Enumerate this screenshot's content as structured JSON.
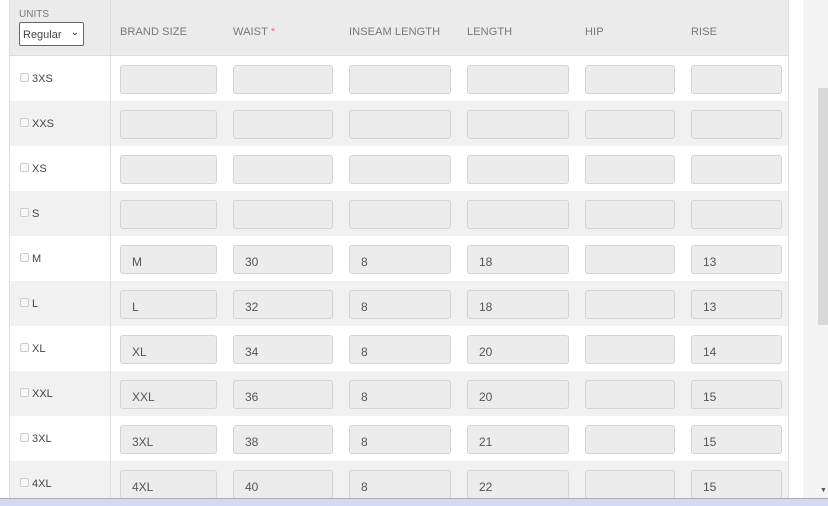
{
  "units": {
    "label": "UNITS",
    "selected": "Regular"
  },
  "columns": [
    "BRAND SIZE",
    "WAIST",
    "INSEAM LENGTH",
    "LENGTH",
    "HIP",
    "RISE"
  ],
  "required_marker": "*",
  "rows": [
    {
      "size": "3XS",
      "values": [
        "",
        "",
        "",
        "",
        "",
        ""
      ]
    },
    {
      "size": "XXS",
      "values": [
        "",
        "",
        "",
        "",
        "",
        ""
      ]
    },
    {
      "size": "XS",
      "values": [
        "",
        "",
        "",
        "",
        "",
        ""
      ]
    },
    {
      "size": "S",
      "values": [
        "",
        "",
        "",
        "",
        "",
        ""
      ]
    },
    {
      "size": "M",
      "values": [
        "M",
        "30",
        "8",
        "18",
        "",
        "13"
      ]
    },
    {
      "size": "L",
      "values": [
        "L",
        "32",
        "8",
        "18",
        "",
        "13"
      ]
    },
    {
      "size": "XL",
      "values": [
        "XL",
        "34",
        "8",
        "20",
        "",
        "14"
      ]
    },
    {
      "size": "XXL",
      "values": [
        "XXL",
        "36",
        "8",
        "20",
        "",
        "15"
      ]
    },
    {
      "size": "3XL",
      "values": [
        "3XL",
        "38",
        "8",
        "21",
        "",
        "15"
      ]
    },
    {
      "size": "4XL",
      "values": [
        "4XL",
        "40",
        "8",
        "22",
        "",
        "15"
      ]
    }
  ]
}
